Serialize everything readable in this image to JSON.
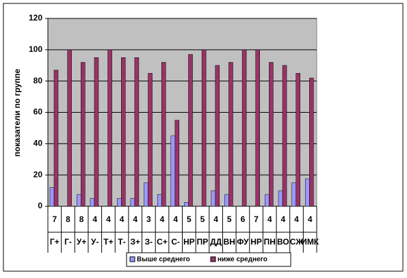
{
  "chart_data": {
    "type": "bar",
    "y_label": "показатели по группе",
    "categories": [
      "Г+",
      "Г-",
      "У+",
      "У-",
      "Т+",
      "Т-",
      "З+",
      "З-",
      "С+",
      "С-",
      "НР",
      "ПР",
      "ДД",
      "ВН",
      "ФУ",
      "НР",
      "ПН",
      "ВО",
      "СЖ",
      "ИМК"
    ],
    "category_numbers": [
      7,
      8,
      8,
      4,
      4,
      4,
      4,
      3,
      4,
      4,
      5,
      5,
      4,
      5,
      6,
      7,
      4,
      4,
      4,
      4
    ],
    "series": [
      {
        "name": "Выше среднего",
        "color": "#9999ff",
        "values": [
          12,
          0,
          7.5,
          5,
          0,
          5,
          5,
          15,
          7.5,
          45,
          2.5,
          0,
          10,
          7.5,
          0,
          0,
          7.5,
          10,
          15,
          17.5
        ]
      },
      {
        "name": "ниже среднего",
        "color": "#993366",
        "values": [
          87,
          100,
          92,
          95,
          100,
          95,
          95,
          85,
          92,
          55,
          97,
          100,
          90,
          92,
          100,
          100,
          92,
          90,
          85,
          82
        ]
      }
    ],
    "ylim": [
      0,
      120
    ],
    "yticks": [
      0,
      20,
      40,
      60,
      80,
      100,
      120
    ],
    "grid": true,
    "plot_background": "#c0c0c0"
  }
}
